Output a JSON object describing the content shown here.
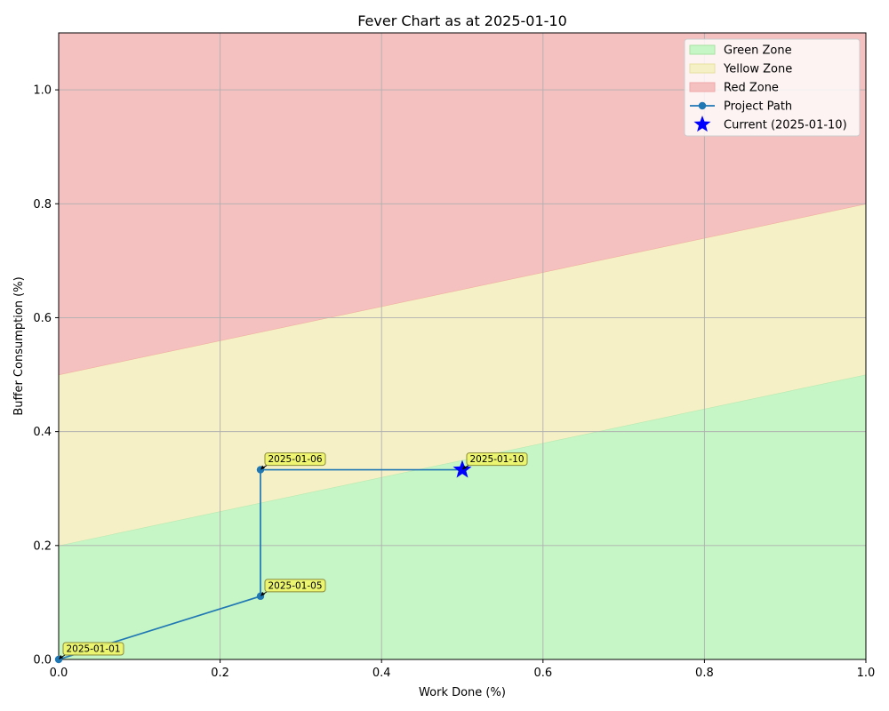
{
  "chart_data": {
    "type": "line",
    "title": "Fever Chart as at 2025-01-10",
    "xlabel": "Work Done (%)",
    "ylabel": "Buffer Consumption (%)",
    "xlim": [
      0,
      1
    ],
    "ylim": [
      0,
      1.1
    ],
    "grid": true,
    "legend_position": "top-right",
    "x_ticks": [
      0.0,
      0.2,
      0.4,
      0.6,
      0.8,
      1.0
    ],
    "x_tick_labels": [
      "0.0",
      "0.2",
      "0.4",
      "0.6",
      "0.8",
      "1.0"
    ],
    "y_ticks": [
      0.0,
      0.2,
      0.4,
      0.6,
      0.8,
      1.0
    ],
    "y_tick_labels": [
      "0.0",
      "0.2",
      "0.4",
      "0.6",
      "0.8",
      "1.0"
    ],
    "zones": [
      {
        "name": "Green Zone",
        "color": "#c6f5c6",
        "lower": [
          [
            0,
            0
          ],
          [
            1,
            0
          ]
        ],
        "upper": [
          [
            0,
            0.2
          ],
          [
            1,
            0.5
          ]
        ]
      },
      {
        "name": "Yellow Zone",
        "color": "#f5f0c6",
        "lower": [
          [
            0,
            0.2
          ],
          [
            1,
            0.5
          ]
        ],
        "upper": [
          [
            0,
            0.5
          ],
          [
            1,
            0.8
          ]
        ]
      },
      {
        "name": "Red Zone",
        "color": "#f5c0c0",
        "lower": [
          [
            0,
            0.5
          ],
          [
            1,
            0.8
          ]
        ],
        "upper": [
          [
            0,
            1.1
          ],
          [
            1,
            1.1
          ]
        ]
      }
    ],
    "series": [
      {
        "name": "Project Path",
        "color": "#1f77b4",
        "points": [
          {
            "x": 0.0,
            "y": 0.0,
            "date": "2025-01-01"
          },
          {
            "x": 0.25,
            "y": 0.111,
            "date": "2025-01-05"
          },
          {
            "x": 0.25,
            "y": 0.333,
            "date": "2025-01-06"
          },
          {
            "x": 0.5,
            "y": 0.333,
            "date": "2025-01-10"
          }
        ]
      }
    ],
    "current": {
      "name": "Current (2025-01-10)",
      "x": 0.5,
      "y": 0.333,
      "color": "#0000ff"
    },
    "annotations": [
      {
        "text": "2025-01-01",
        "x": 0.0,
        "y": 0.0
      },
      {
        "text": "2025-01-05",
        "x": 0.25,
        "y": 0.111
      },
      {
        "text": "2025-01-06",
        "x": 0.25,
        "y": 0.333
      },
      {
        "text": "2025-01-10",
        "x": 0.5,
        "y": 0.333
      }
    ],
    "legend": [
      "Green Zone",
      "Yellow Zone",
      "Red Zone",
      "Project Path",
      "Current (2025-01-10)"
    ]
  }
}
